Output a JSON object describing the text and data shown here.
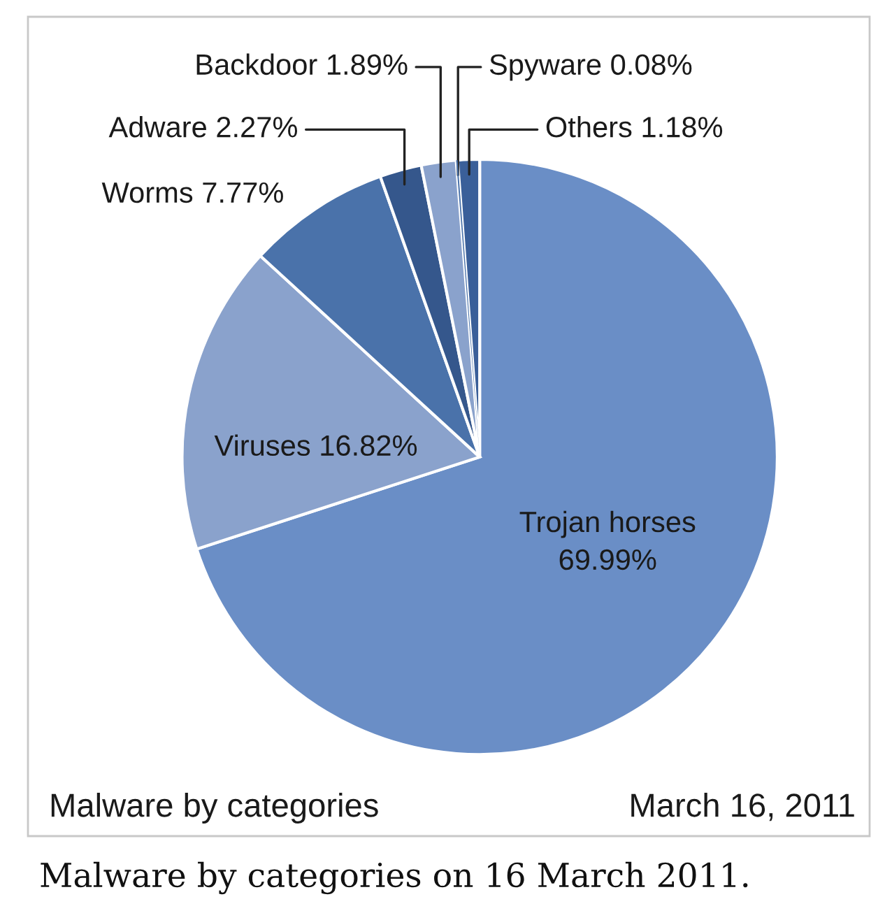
{
  "chart_data": {
    "type": "pie",
    "title": "Malware by categories",
    "categories": [
      "Trojan horses",
      "Viruses",
      "Worms",
      "Adware",
      "Backdoor",
      "Spyware",
      "Others"
    ],
    "values": [
      69.99,
      16.82,
      7.77,
      2.27,
      1.89,
      0.08,
      1.18
    ],
    "colors": [
      "#6a8ec6",
      "#8aa2cc",
      "#4a72aa",
      "#35578c",
      "#8aa2cc",
      "#4a72aa",
      "#3a5f99"
    ],
    "value_labels": [
      "69.99%",
      "16.82%",
      "7.77%",
      "2.27%",
      "1.89%",
      "0.08%",
      "1.18%"
    ],
    "annotations": [
      "March 16, 2011",
      "Malware by categories on 16 March 2011."
    ]
  }
}
